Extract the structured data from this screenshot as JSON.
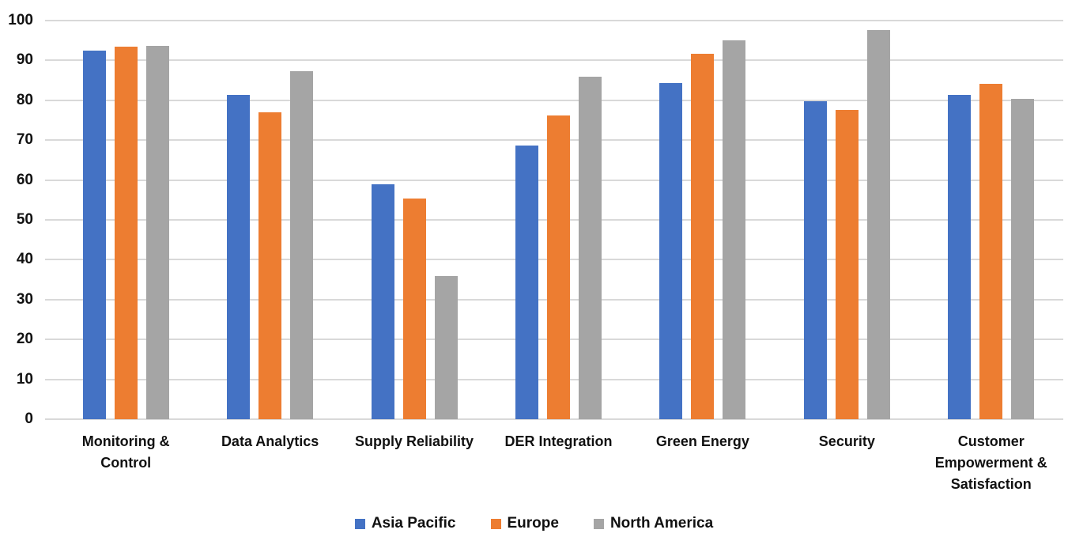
{
  "chart_data": {
    "type": "bar",
    "title": "",
    "xlabel": "",
    "ylabel": "",
    "ylim": [
      0,
      100
    ],
    "ytick_step": 10,
    "ytick_labels": [
      "0",
      "10",
      "20",
      "30",
      "40",
      "50",
      "60",
      "70",
      "80",
      "90",
      "100"
    ],
    "grid": true,
    "legend_position": "bottom",
    "categories": [
      "Monitoring & Control",
      "Data Analytics",
      "Supply Reliability",
      "DER Integration",
      "Green Energy",
      "Security",
      "Customer Empowerment & Satisfaction"
    ],
    "series": [
      {
        "name": "Asia Pacific",
        "color": "#4472C4",
        "values": [
          92.5,
          81.3,
          59.0,
          68.7,
          84.3,
          79.7,
          81.4
        ]
      },
      {
        "name": "Europe",
        "color": "#ED7D31",
        "values": [
          93.5,
          77.0,
          55.3,
          76.1,
          91.6,
          77.6,
          84.1
        ]
      },
      {
        "name": "North America",
        "color": "#A5A5A5",
        "values": [
          93.7,
          87.3,
          36.0,
          86.0,
          95.1,
          97.7,
          80.3
        ]
      }
    ]
  },
  "style": {
    "gridline_color": "#d9d9d9",
    "text_color": "#111111",
    "background_color": "#ffffff"
  }
}
